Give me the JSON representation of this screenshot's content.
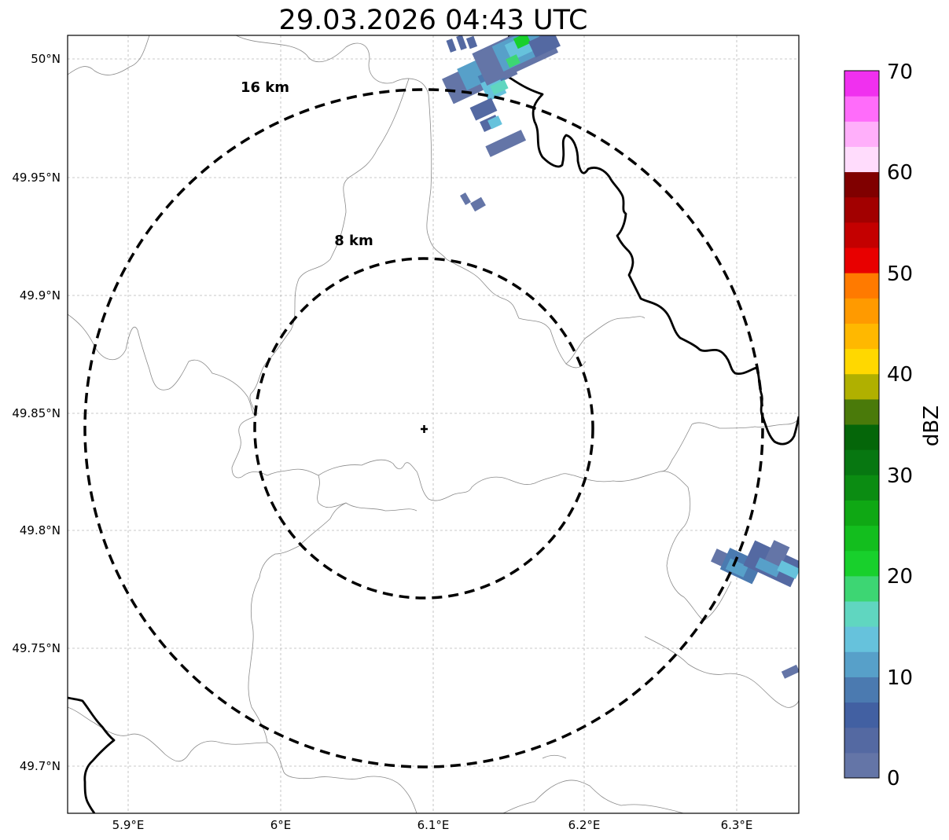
{
  "title": "29.03.2026 04:43 UTC",
  "map": {
    "lat_ticks": [
      "49.7°N",
      "49.75°N",
      "49.8°N",
      "49.85°N",
      "49.9°N",
      "49.95°N",
      "50°N"
    ],
    "lon_ticks": [
      "5.9°E",
      "6°E",
      "6.1°E",
      "6.2°E",
      "6.3°E"
    ],
    "range_rings": [
      {
        "label": "8 km",
        "radius_km": 8
      },
      {
        "label": "16 km",
        "radius_km": 16
      }
    ],
    "radar_site_marker": "plus-icon",
    "gridlines": true
  },
  "colorbar": {
    "label": "dBZ",
    "tick_labels": [
      "0",
      "10",
      "20",
      "30",
      "40",
      "50",
      "60",
      "70"
    ],
    "colors": [
      "#6475a7",
      "#5469a2",
      "#4260a2",
      "#4b7ab0",
      "#57a0c9",
      "#66c2dc",
      "#60d6c0",
      "#3dd673",
      "#18d02c",
      "#13be1e",
      "#0fa814",
      "#0b8c12",
      "#077711",
      "#056609",
      "#4a7a0a",
      "#b0b000",
      "#ffd800",
      "#ffb800",
      "#ff9a00",
      "#ff7a00",
      "#e80000",
      "#c40000",
      "#a20000",
      "#800000",
      "#ffdcfc",
      "#ffaffa",
      "#ff6cfa",
      "#f030ef"
    ]
  }
}
